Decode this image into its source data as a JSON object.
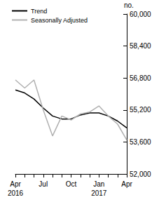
{
  "chart_data": {
    "type": "line",
    "y_label": "no.",
    "categories": [
      "Apr\n2016",
      null,
      null,
      "Jul",
      null,
      null,
      "Oct",
      null,
      null,
      "Jan\n2017",
      null,
      null,
      "Apr"
    ],
    "series": [
      {
        "name": "Trend",
        "color": "#000000",
        "values": [
          56200,
          56050,
          55750,
          55300,
          54900,
          54750,
          54750,
          54950,
          55050,
          55050,
          54900,
          54650,
          54300
        ]
      },
      {
        "name": "Seasonally Adjusted",
        "color": "#b0b0b0",
        "values": [
          56700,
          56300,
          56700,
          55200,
          53900,
          54900,
          54700,
          55000,
          55100,
          55400,
          54900,
          54500,
          53700
        ]
      }
    ],
    "ylim": [
      52000,
      60000
    ],
    "yticks": [
      52000,
      53600,
      55200,
      56800,
      58400,
      60000
    ],
    "grid": false,
    "legend": "top-left"
  }
}
